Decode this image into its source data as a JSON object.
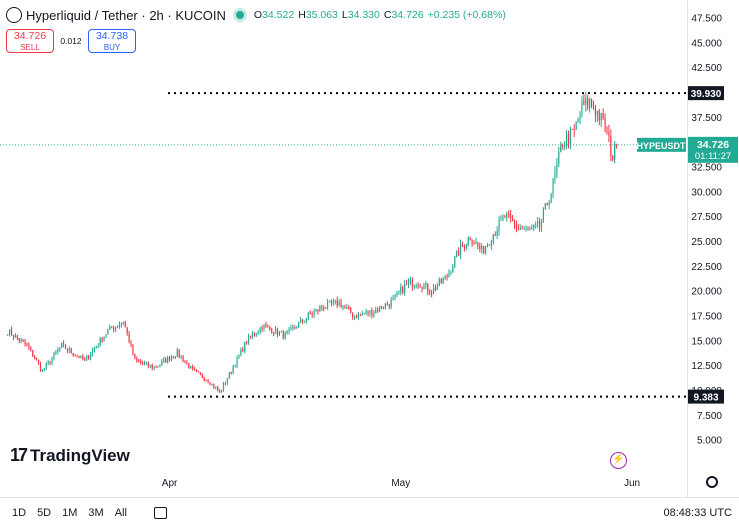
{
  "header": {
    "title": "Hyperliquid / Tether · 2h · KUCOIN",
    "o_label": "O",
    "o": "34.522",
    "h_label": "H",
    "h": "35.063",
    "l_label": "L",
    "l": "34.330",
    "c_label": "C",
    "c": "34.726",
    "change": "+0.235 (+0.68%)"
  },
  "trade": {
    "sell_price": "34.726",
    "sell_label": "SELL",
    "spread": "0.012",
    "buy_price": "34.738",
    "buy_label": "BUY"
  },
  "bottom": {
    "ranges": [
      "1D",
      "5D",
      "1M",
      "3M",
      "All"
    ],
    "clock": "08:48:33 UTC"
  },
  "logo": {
    "text": "TradingView",
    "mark": "17"
  },
  "colors": {
    "up": "#22ab94",
    "down": "#f23645",
    "accent": "#2962ff",
    "price_tag": "#22ab94"
  },
  "chart_data": {
    "type": "candlestick",
    "symbol": "HYPEUSDT",
    "y_ticks": [
      "5.000",
      "7.500",
      "10.000",
      "12.500",
      "15.000",
      "17.500",
      "20.000",
      "22.500",
      "25.000",
      "27.500",
      "30.000",
      "32.500",
      "35.000",
      "37.500",
      "40.000",
      "42.500",
      "45.000",
      "47.500"
    ],
    "ylim": [
      2.7,
      48.5
    ],
    "x_ticks": [
      {
        "label": "Apr",
        "t": 42
      },
      {
        "label": "May",
        "t": 102
      },
      {
        "label": "Jun",
        "t": 162
      }
    ],
    "xlim": [
      -2,
      176
    ],
    "close_path": [
      [
        0,
        16.0
      ],
      [
        5,
        14.5
      ],
      [
        9,
        12.0
      ],
      [
        14,
        14.5
      ],
      [
        20,
        13.0
      ],
      [
        26,
        16.0
      ],
      [
        30,
        17.0
      ],
      [
        33,
        13.0
      ],
      [
        38,
        12.3
      ],
      [
        44,
        13.8
      ],
      [
        48,
        12.0
      ],
      [
        52,
        11.0
      ],
      [
        55,
        9.8
      ],
      [
        58,
        12.0
      ],
      [
        62,
        15.0
      ],
      [
        66,
        16.5
      ],
      [
        72,
        15.5
      ],
      [
        78,
        17.5
      ],
      [
        82,
        18.5
      ],
      [
        86,
        18.8
      ],
      [
        90,
        17.5
      ],
      [
        95,
        18.0
      ],
      [
        100,
        19.0
      ],
      [
        103,
        20.5
      ],
      [
        106,
        21.0
      ],
      [
        110,
        20.0
      ],
      [
        114,
        21.5
      ],
      [
        117,
        24.0
      ],
      [
        120,
        25.5
      ],
      [
        123,
        24.0
      ],
      [
        126,
        25.8
      ],
      [
        129,
        27.5
      ],
      [
        132,
        26.5
      ],
      [
        135,
        26.0
      ],
      [
        138,
        26.5
      ],
      [
        141,
        30.0
      ],
      [
        144,
        35.0
      ],
      [
        147,
        36.0
      ],
      [
        149,
        38.5
      ],
      [
        151,
        39.0
      ],
      [
        153,
        38.0
      ],
      [
        155,
        36.5
      ],
      [
        157,
        33.5
      ],
      [
        158,
        34.726
      ]
    ],
    "levels": [
      {
        "label": "39.930",
        "value": 39.93
      },
      {
        "label": "9.383",
        "value": 9.383
      }
    ],
    "last_price": {
      "label": "34.726",
      "countdown": "01:11:27",
      "value": 34.726
    }
  }
}
